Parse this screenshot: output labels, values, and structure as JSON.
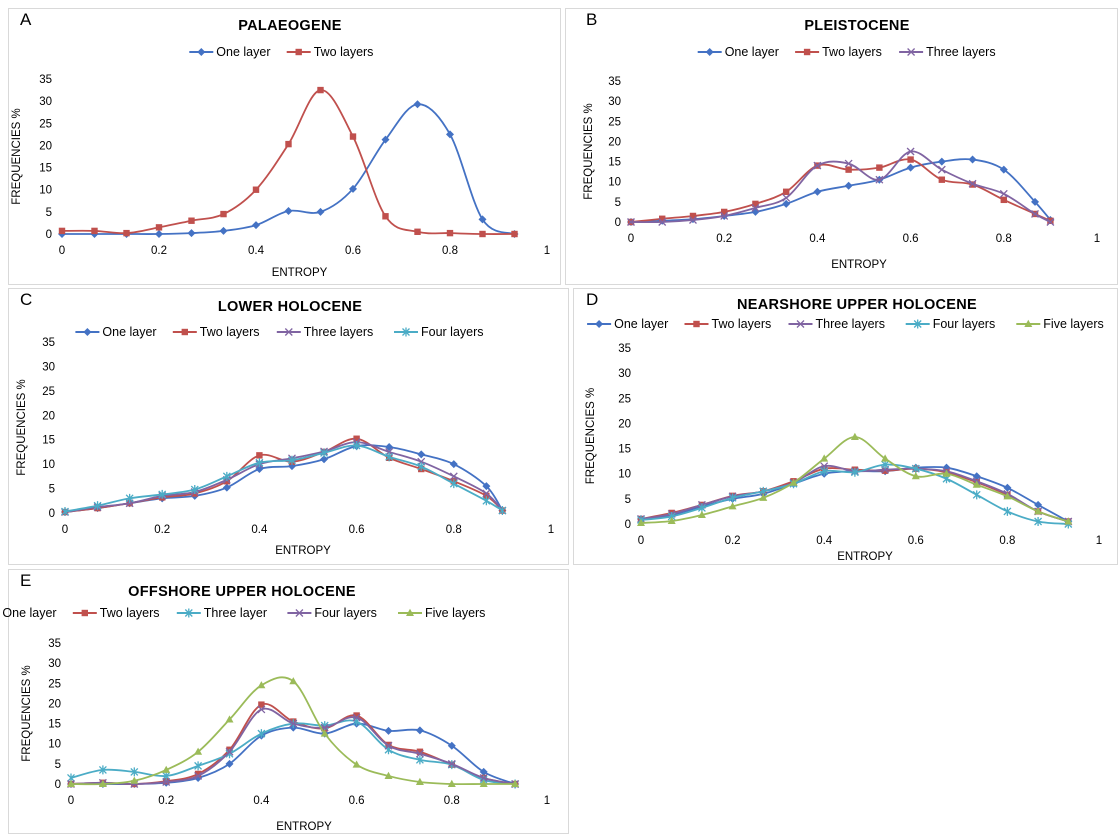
{
  "markers_note_colors": {
    "blue": "#4472C4",
    "red": "#C0504D",
    "purple": "#8064A2",
    "cyan": "#4BACC6",
    "green": "#9BBB59"
  },
  "chart_data": [
    {
      "letter": "A",
      "type": "line",
      "title": "PALAEOGENE",
      "xlabel": "ENTROPY",
      "ylabel": "FREQUENCIES %",
      "xlim": [
        0,
        1
      ],
      "ylim": [
        0,
        35
      ],
      "xticks": [
        "0",
        "0.2",
        "0.4",
        "0.6",
        "0.8",
        "1"
      ],
      "yticks": [
        "0",
        "5",
        "10",
        "15",
        "20",
        "25",
        "30",
        "35"
      ],
      "legend_position": "top",
      "series": [
        {
          "name": "One layer",
          "color": "#4472C4",
          "marker": "diamond",
          "x": [
            0,
            0.067,
            0.133,
            0.2,
            0.267,
            0.333,
            0.4,
            0.467,
            0.533,
            0.6,
            0.667,
            0.733,
            0.8,
            0.867,
            0.933
          ],
          "y": [
            0,
            0,
            0,
            0,
            0.2,
            0.7,
            2,
            5.2,
            5,
            10.2,
            21.3,
            29.3,
            22.5,
            3.3,
            0
          ]
        },
        {
          "name": "Two layers",
          "color": "#C0504D",
          "marker": "square",
          "x": [
            0,
            0.067,
            0.133,
            0.2,
            0.267,
            0.333,
            0.4,
            0.467,
            0.533,
            0.6,
            0.667,
            0.733,
            0.8,
            0.867,
            0.933
          ],
          "y": [
            0.7,
            0.7,
            0.2,
            1.5,
            3,
            4.5,
            10,
            20.3,
            32.5,
            22,
            4,
            0.5,
            0.2,
            0,
            0
          ]
        }
      ]
    },
    {
      "letter": "B",
      "type": "line",
      "title": "PLEISTOCENE",
      "xlabel": "ENTROPY",
      "ylabel": "FREQUENCIES %",
      "xlim": [
        0,
        1
      ],
      "ylim": [
        0,
        35
      ],
      "xticks": [
        "0",
        "0.2",
        "0.4",
        "0.6",
        "0.8",
        "1"
      ],
      "yticks": [
        "0",
        "5",
        "10",
        "15",
        "20",
        "25",
        "30",
        "35"
      ],
      "legend_position": "top",
      "series": [
        {
          "name": "One layer",
          "color": "#4472C4",
          "marker": "diamond",
          "x": [
            0,
            0.067,
            0.133,
            0.2,
            0.267,
            0.333,
            0.4,
            0.467,
            0.533,
            0.6,
            0.667,
            0.733,
            0.8,
            0.867,
            0.9
          ],
          "y": [
            0,
            0.3,
            0.7,
            1.5,
            2.5,
            4.5,
            7.5,
            9,
            10.5,
            13.5,
            15,
            15.5,
            13,
            5,
            0.5
          ]
        },
        {
          "name": "Two layers",
          "color": "#C0504D",
          "marker": "square",
          "x": [
            0,
            0.067,
            0.133,
            0.2,
            0.267,
            0.333,
            0.4,
            0.467,
            0.533,
            0.6,
            0.667,
            0.733,
            0.8,
            0.867,
            0.9
          ],
          "y": [
            0,
            0.8,
            1.5,
            2.5,
            4.5,
            7.5,
            14,
            13,
            13.5,
            15.5,
            10.5,
            9.3,
            5.5,
            2,
            0.3
          ]
        },
        {
          "name": "Three layers",
          "color": "#8064A2",
          "marker": "x",
          "x": [
            0,
            0.067,
            0.133,
            0.2,
            0.267,
            0.333,
            0.4,
            0.467,
            0.533,
            0.6,
            0.667,
            0.733,
            0.8,
            0.867,
            0.9
          ],
          "y": [
            0,
            0,
            0.5,
            1.5,
            3.5,
            6,
            14,
            14.5,
            10.5,
            17.5,
            13,
            9.5,
            7,
            2,
            0
          ]
        }
      ]
    },
    {
      "letter": "C",
      "type": "line",
      "title": "LOWER HOLOCENE",
      "xlabel": "ENTROPY",
      "ylabel": "FREQUENCIES %",
      "xlim": [
        0,
        1
      ],
      "ylim": [
        0,
        35
      ],
      "xticks": [
        "0",
        "0.2",
        "0.4",
        "0.6",
        "0.8",
        "1"
      ],
      "yticks": [
        "0",
        "5",
        "10",
        "15",
        "20",
        "25",
        "30",
        "35"
      ],
      "legend_position": "top",
      "series": [
        {
          "name": "One layer",
          "color": "#4472C4",
          "marker": "diamond",
          "x": [
            0,
            0.067,
            0.133,
            0.2,
            0.267,
            0.333,
            0.4,
            0.467,
            0.533,
            0.6,
            0.667,
            0.733,
            0.8,
            0.867,
            0.9
          ],
          "y": [
            0.2,
            1,
            2,
            3,
            3.5,
            5.2,
            9,
            9.6,
            11,
            13.7,
            13.5,
            12,
            10,
            5.5,
            0.5
          ]
        },
        {
          "name": "Two layers",
          "color": "#C0504D",
          "marker": "square",
          "x": [
            0,
            0.067,
            0.133,
            0.2,
            0.267,
            0.333,
            0.4,
            0.467,
            0.533,
            0.6,
            0.667,
            0.733,
            0.8,
            0.867,
            0.9
          ],
          "y": [
            0.2,
            1,
            2,
            3.2,
            4,
            6.5,
            11.8,
            10.5,
            12.5,
            15.2,
            11.3,
            9,
            6.5,
            3.5,
            0.5
          ]
        },
        {
          "name": "Three layers",
          "color": "#8064A2",
          "marker": "x",
          "x": [
            0,
            0.067,
            0.133,
            0.2,
            0.267,
            0.333,
            0.4,
            0.467,
            0.533,
            0.6,
            0.667,
            0.733,
            0.8,
            0.867,
            0.9
          ],
          "y": [
            0.2,
            1.2,
            2,
            3.5,
            4.3,
            6.8,
            10,
            11.2,
            12.6,
            14.5,
            12.5,
            10.5,
            7.5,
            4,
            0.5
          ]
        },
        {
          "name": "Four layers",
          "color": "#4BACC6",
          "marker": "star",
          "x": [
            0,
            0.067,
            0.133,
            0.2,
            0.267,
            0.333,
            0.4,
            0.467,
            0.533,
            0.6,
            0.667,
            0.733,
            0.8,
            0.867,
            0.9
          ],
          "y": [
            0.3,
            1.5,
            3,
            3.8,
            4.8,
            7.5,
            10.3,
            10.8,
            12.3,
            13.8,
            11.5,
            9.5,
            6,
            2.5,
            0.5
          ]
        }
      ]
    },
    {
      "letter": "D",
      "type": "line",
      "title": "NEARSHORE UPPER HOLOCENE",
      "xlabel": "ENTROPY",
      "ylabel": "FREQUENCIES %",
      "xlim": [
        0,
        1
      ],
      "ylim": [
        0,
        35
      ],
      "xticks": [
        "0",
        "0.2",
        "0.4",
        "0.6",
        "0.8",
        "1"
      ],
      "yticks": [
        "0",
        "5",
        "10",
        "15",
        "20",
        "25",
        "30",
        "35"
      ],
      "legend_position": "top",
      "series": [
        {
          "name": "One layer",
          "color": "#4472C4",
          "marker": "diamond",
          "x": [
            0,
            0.067,
            0.133,
            0.2,
            0.267,
            0.333,
            0.4,
            0.467,
            0.533,
            0.6,
            0.667,
            0.733,
            0.8,
            0.867,
            0.933
          ],
          "y": [
            1,
            1.8,
            3.5,
            5,
            6,
            8,
            10,
            10.5,
            10.5,
            11.2,
            11.2,
            9.5,
            7.2,
            3.8,
            0.5
          ]
        },
        {
          "name": "Two layers",
          "color": "#C0504D",
          "marker": "square",
          "x": [
            0,
            0.067,
            0.133,
            0.2,
            0.267,
            0.333,
            0.4,
            0.467,
            0.533,
            0.6,
            0.667,
            0.733,
            0.8,
            0.867,
            0.933
          ],
          "y": [
            1,
            2.2,
            3.8,
            5.6,
            6.5,
            8.5,
            11,
            10.8,
            10.6,
            11,
            10.3,
            8.3,
            5.8,
            2.5,
            0.5
          ]
        },
        {
          "name": "Three layers",
          "color": "#8064A2",
          "marker": "x",
          "x": [
            0,
            0.067,
            0.133,
            0.2,
            0.267,
            0.333,
            0.4,
            0.467,
            0.533,
            0.6,
            0.667,
            0.733,
            0.8,
            0.867,
            0.933
          ],
          "y": [
            1,
            2,
            3.8,
            5.5,
            6.5,
            8.2,
            11.5,
            10.5,
            10.8,
            11,
            10.5,
            8.5,
            6,
            2.5,
            0.5
          ]
        },
        {
          "name": "Four layers",
          "color": "#4BACC6",
          "marker": "star",
          "x": [
            0,
            0.067,
            0.133,
            0.2,
            0.267,
            0.333,
            0.4,
            0.467,
            0.533,
            0.6,
            0.667,
            0.733,
            0.8,
            0.867,
            0.933
          ],
          "y": [
            0.8,
            1.5,
            3.2,
            5.2,
            6.5,
            8,
            10.5,
            10.3,
            11.8,
            11,
            9,
            5.8,
            2.5,
            0.5,
            0
          ]
        },
        {
          "name": "Five layers",
          "color": "#9BBB59",
          "marker": "triangle",
          "x": [
            0,
            0.067,
            0.133,
            0.2,
            0.267,
            0.333,
            0.4,
            0.467,
            0.533,
            0.6,
            0.667,
            0.733,
            0.8,
            0.867,
            0.933
          ],
          "y": [
            0.2,
            0.6,
            1.8,
            3.5,
            5.2,
            8.2,
            13,
            17.3,
            13,
            9.5,
            10,
            7.8,
            5.5,
            2.5,
            0.5
          ]
        }
      ]
    },
    {
      "letter": "E",
      "type": "line",
      "title": "OFFSHORE UPPER HOLOCENE",
      "xlabel": "ENTROPY",
      "ylabel": "FREQUENCIES %",
      "xlim": [
        0,
        1
      ],
      "ylim": [
        0,
        35
      ],
      "xticks": [
        "0",
        "0.2",
        "0.4",
        "0.6",
        "0.8",
        "1"
      ],
      "yticks": [
        "0",
        "5",
        "10",
        "15",
        "20",
        "25",
        "30",
        "35"
      ],
      "legend_position": "top",
      "series": [
        {
          "name": "One layer",
          "color": "#4472C4",
          "marker": "diamond",
          "x": [
            0,
            0.067,
            0.133,
            0.2,
            0.267,
            0.333,
            0.4,
            0.467,
            0.533,
            0.6,
            0.667,
            0.733,
            0.8,
            0.867,
            0.933
          ],
          "y": [
            0,
            0,
            0,
            0.3,
            1.5,
            5,
            12,
            14,
            12.5,
            15,
            13.2,
            13.3,
            9.5,
            3,
            0
          ]
        },
        {
          "name": "Two layers",
          "color": "#C0504D",
          "marker": "square",
          "x": [
            0,
            0.067,
            0.133,
            0.2,
            0.267,
            0.333,
            0.4,
            0.467,
            0.533,
            0.6,
            0.667,
            0.733,
            0.8,
            0.867,
            0.933
          ],
          "y": [
            0,
            0.3,
            0,
            0.7,
            2.5,
            8.5,
            19.7,
            15.5,
            13.8,
            17,
            9.7,
            8,
            4.8,
            1.5,
            0
          ]
        },
        {
          "name": "Three layer",
          "color": "#4BACC6",
          "marker": "star",
          "x": [
            0,
            0.067,
            0.133,
            0.2,
            0.267,
            0.333,
            0.4,
            0.467,
            0.533,
            0.6,
            0.667,
            0.733,
            0.8,
            0.867,
            0.933
          ],
          "y": [
            1.5,
            3.5,
            3,
            2,
            4.5,
            7.5,
            12.5,
            15,
            14.5,
            15.5,
            8.5,
            6,
            4.8,
            1,
            0
          ]
        },
        {
          "name": "Four layers",
          "color": "#8064A2",
          "marker": "x",
          "x": [
            0,
            0.067,
            0.133,
            0.2,
            0.267,
            0.333,
            0.4,
            0.467,
            0.533,
            0.6,
            0.667,
            0.733,
            0.8,
            0.867,
            0.933
          ],
          "y": [
            0,
            0.3,
            0,
            0.5,
            2,
            8,
            18.5,
            15,
            14,
            16.5,
            9.5,
            7.5,
            5,
            1.5,
            0
          ]
        },
        {
          "name": "Five layers",
          "color": "#9BBB59",
          "marker": "triangle",
          "x": [
            0,
            0.067,
            0.133,
            0.2,
            0.267,
            0.333,
            0.4,
            0.467,
            0.533,
            0.6,
            0.667,
            0.733,
            0.8,
            0.867,
            0.933
          ],
          "y": [
            0,
            0,
            0.8,
            3.5,
            8,
            16,
            24.5,
            25.5,
            12.5,
            4.8,
            2,
            0.5,
            0,
            0,
            0
          ]
        }
      ]
    }
  ]
}
